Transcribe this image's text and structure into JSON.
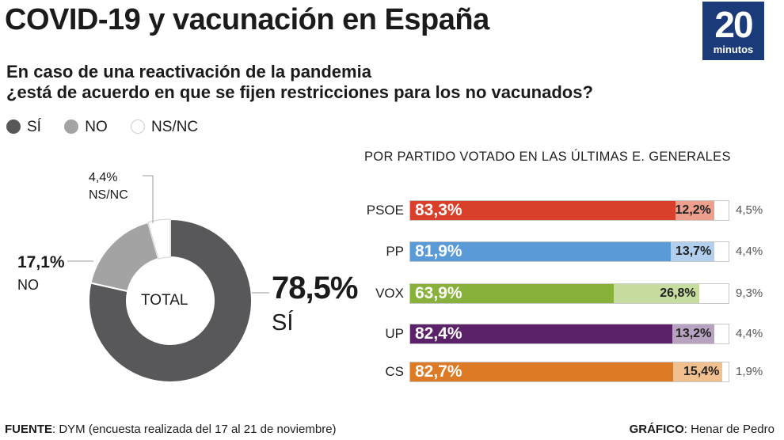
{
  "header": {
    "title": "COVID-19 y vacunación en España",
    "logo_number": "20",
    "logo_word": "minutos",
    "question_line1": "En caso de una reactivación de la pandemia",
    "question_line2": "¿está de acuerdo en que se fijen restricciones para los no vacunados?"
  },
  "legend": [
    {
      "label": "SÍ",
      "color": "#58585a"
    },
    {
      "label": "NO",
      "color": "#a3a3a3"
    },
    {
      "label": "NS/NC",
      "color": "#ffffff"
    }
  ],
  "donut": {
    "center_label": "TOTAL",
    "yes_value": "78,5%",
    "yes_label": "SÍ",
    "no_value": "17,1%",
    "no_label": "NO",
    "nsnc_value": "4,4%",
    "nsnc_label": "NS/NC"
  },
  "bars": {
    "subtitle": "POR PARTIDO VOTADO EN LAS ÚLTIMAS E. GENERALES"
  },
  "footer": {
    "source_key": "FUENTE",
    "source_text": ": DYM (encuesta realizada del 17 al 21 de noviembre)",
    "credit_key": "GRÁFICO",
    "credit_text": ": Henar de Pedro"
  },
  "chart_data": [
    {
      "type": "pie",
      "categories": [
        "SÍ",
        "NO",
        "NS/NC"
      ],
      "values": [
        78.5,
        17.1,
        4.4
      ],
      "colors": [
        "#58585a",
        "#a3a3a3",
        "#ffffff"
      ],
      "labels": [
        "78,5%",
        "17,1%",
        "4,4%"
      ]
    },
    {
      "type": "bar",
      "orientation": "horizontal",
      "stacked": true,
      "categories": [
        "PSOE",
        "PP",
        "VOX",
        "UP",
        "CS"
      ],
      "series": [
        {
          "name": "SÍ",
          "values": [
            83.3,
            81.9,
            63.9,
            82.4,
            82.7
          ],
          "labels": [
            "83,3%",
            "81,9%",
            "63,9%",
            "82,4%",
            "82,7%"
          ]
        },
        {
          "name": "NO",
          "values": [
            12.2,
            13.7,
            26.8,
            13.2,
            15.4
          ],
          "labels": [
            "12,2%",
            "13,7%",
            "26,8%",
            "13,2%",
            "15,4%"
          ]
        },
        {
          "name": "NS/NC",
          "values": [
            4.5,
            4.4,
            9.3,
            4.4,
            1.9
          ],
          "labels": [
            "4,5%",
            "4,4%",
            "9,3%",
            "4,4%",
            "1,9%"
          ]
        }
      ],
      "colors": {
        "PSOE": {
          "yes": "#d9402b",
          "no": "#ee9e8c"
        },
        "PP": {
          "yes": "#5a9ad6",
          "no": "#b2d0ee"
        },
        "VOX": {
          "yes": "#88b13c",
          "no": "#c7dd9f"
        },
        "UP": {
          "yes": "#5b2169",
          "no": "#b7a2c0"
        },
        "CS": {
          "yes": "#dd7a25",
          "no": "#f0c08e"
        }
      }
    }
  ]
}
